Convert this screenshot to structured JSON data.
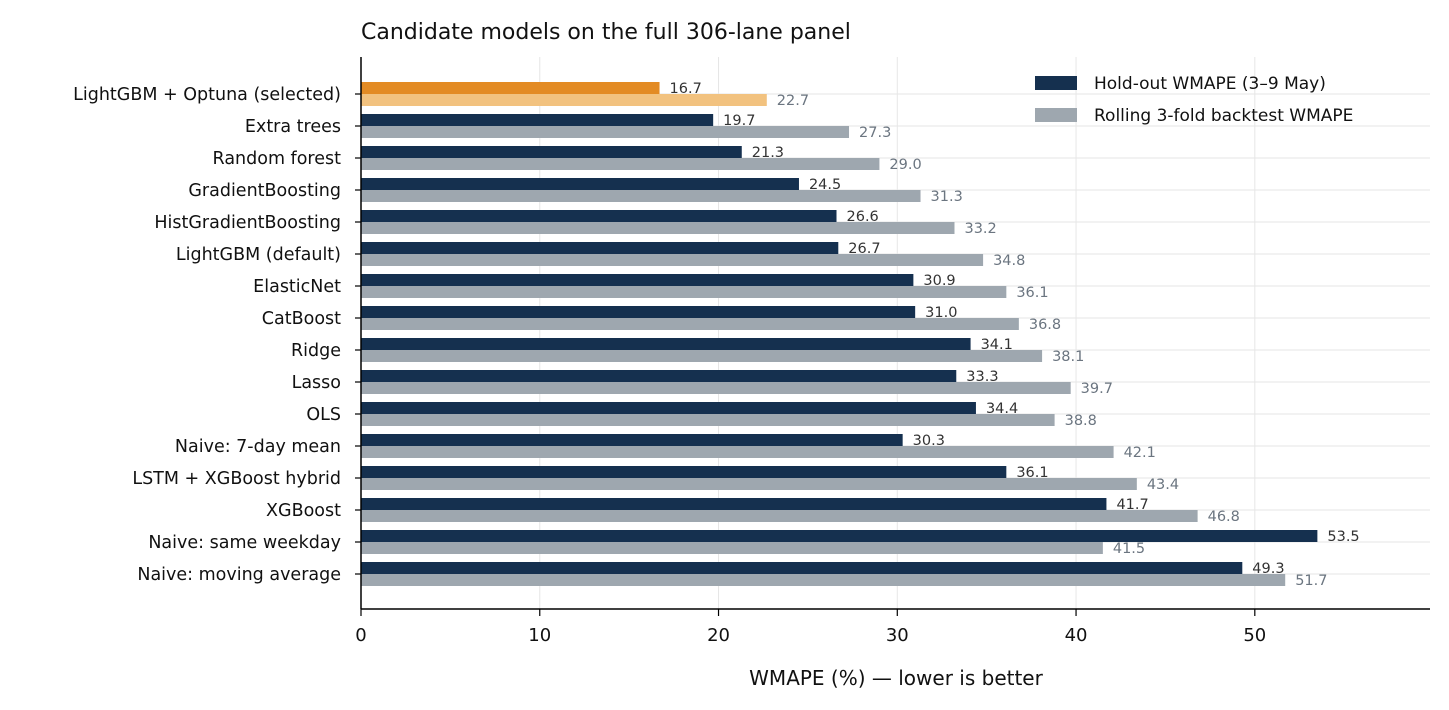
{
  "chart_data": {
    "type": "bar",
    "orientation": "horizontal",
    "title": "Candidate models on the full 306-lane panel",
    "xlabel": "WMAPE (%) — lower is better",
    "ylabel": "",
    "xlim": [
      0,
      59.8
    ],
    "xticks": [
      0,
      10,
      20,
      30,
      40,
      50
    ],
    "grid": true,
    "legend_position": "top-right",
    "categories": [
      "LightGBM + Optuna (selected)",
      "Extra trees",
      "Random forest",
      "GradientBoosting",
      "HistGradientBoosting",
      "LightGBM (default)",
      "ElasticNet",
      "CatBoost",
      "Ridge",
      "Lasso",
      "OLS",
      "Naive: 7-day mean",
      "LSTM + XGBoost hybrid",
      "XGBoost",
      "Naive: same weekday",
      "Naive: moving average"
    ],
    "series": [
      {
        "name": "Hold-out WMAPE (3–9 May)",
        "color": "#15304f",
        "highlight_color": "#e38b24",
        "values": [
          16.7,
          19.7,
          21.3,
          24.5,
          26.6,
          26.7,
          30.9,
          31.0,
          34.1,
          33.3,
          34.4,
          30.3,
          36.1,
          41.7,
          53.5,
          49.3
        ],
        "labels": [
          "16.7",
          "19.7",
          "21.3",
          "24.5",
          "26.6",
          "26.7",
          "30.9",
          "31.0",
          "34.1",
          "33.3",
          "34.4",
          "30.3",
          "36.1",
          "41.7",
          "53.5",
          "49.3"
        ]
      },
      {
        "name": "Rolling 3-fold backtest WMAPE",
        "color": "#9ea7af",
        "highlight_color": "#f2c27f",
        "values": [
          22.7,
          27.3,
          29.0,
          31.3,
          33.2,
          34.8,
          36.1,
          36.8,
          38.1,
          39.7,
          38.8,
          42.1,
          43.4,
          46.8,
          41.5,
          51.7
        ],
        "labels": [
          "22.7",
          "27.3",
          "29.0",
          "31.3",
          "33.2",
          "34.8",
          "36.1",
          "36.8",
          "38.1",
          "39.7",
          "38.8",
          "42.1",
          "43.4",
          "46.8",
          "41.5",
          "51.7"
        ]
      }
    ],
    "highlight_category": "LightGBM + Optuna (selected)"
  }
}
